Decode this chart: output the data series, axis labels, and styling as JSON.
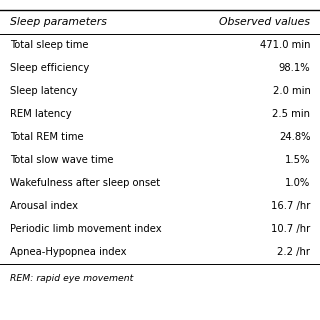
{
  "headers": [
    "Sleep parameters",
    "Observed values"
  ],
  "rows": [
    [
      "Total sleep time",
      "471.0 min"
    ],
    [
      "Sleep efficiency",
      "98.1%"
    ],
    [
      "Sleep latency",
      "2.0 min"
    ],
    [
      "REM latency",
      "2.5 min"
    ],
    [
      "Total REM time",
      "24.8%"
    ],
    [
      "Total slow wave time",
      "1.5%"
    ],
    [
      "Wakefulness after sleep onset",
      "1.0%"
    ],
    [
      "Arousal index",
      "16.7 /hr"
    ],
    [
      "Periodic limb movement index",
      "10.7 /hr"
    ],
    [
      "Apnea-Hypopnea index",
      "2.2 /hr"
    ]
  ],
  "footnote": "REM: rapid eye movement",
  "bg_color": "#ffffff",
  "line_color": "#000000",
  "text_color": "#000000",
  "font_size": 7.2,
  "header_font_size": 7.8
}
